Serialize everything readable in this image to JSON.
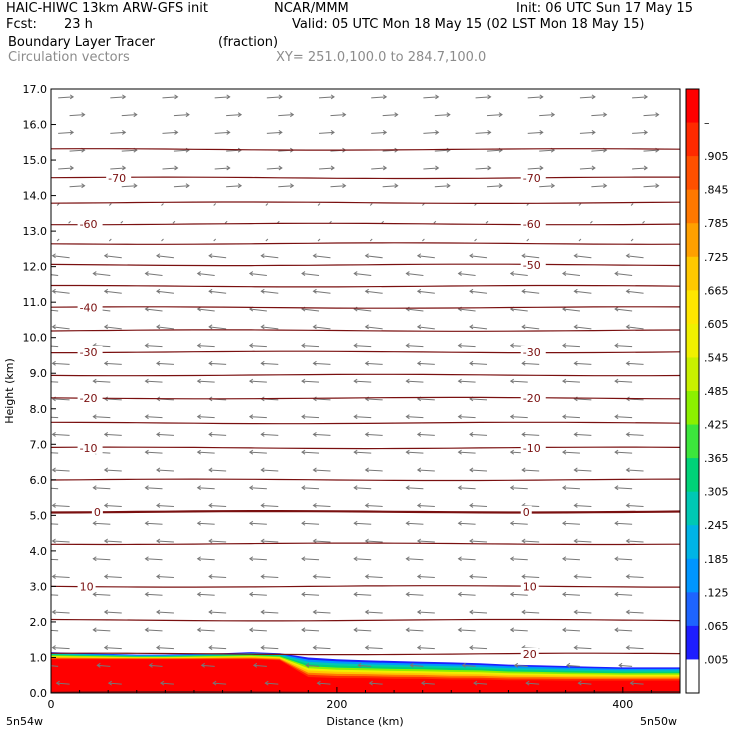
{
  "header": {
    "line1_left": "HAIC-HIWC 13km ARW-GFS init",
    "line1_mid": "NCAR/MMM",
    "line1_right": "Init: 06 UTC Sun 17 May 15",
    "fcst_label": "Fcst:",
    "fcst_value": "23 h",
    "valid": "Valid: 05 UTC Mon 18 May 15 (02 LST Mon 18 May 15)",
    "field_name": "Boundary Layer Tracer",
    "field_units": "(fraction)",
    "vectors_label": "Circulation vectors",
    "xy_label": "XY= 251.0,100.0 to 284.7,100.0"
  },
  "colors": {
    "contour": "#7a1010",
    "vector": "#777777",
    "gray_text": "#8c8c8c"
  },
  "chart_data": {
    "type": "cross-section",
    "xlabel": "Distance (km)",
    "ylabel": "Height (km)",
    "xlim": [
      0,
      440
    ],
    "ylim": [
      0,
      17
    ],
    "x_ticks": [
      0,
      200,
      400
    ],
    "y_ticks": [
      "0.0",
      "1.0",
      "2.0",
      "3.0",
      "4.0",
      "5.0",
      "6.0",
      "7.0",
      "8.0",
      "9.0",
      "10.0",
      "11.0",
      "12.0",
      "13.0",
      "14.0",
      "15.0",
      "16.0",
      "17.0"
    ],
    "left_end_label": "5n54w",
    "right_end_label": "5n50w",
    "temperature_contours": [
      {
        "height": 0.02,
        "label": ""
      },
      {
        "height": 1.1,
        "label": "20",
        "label_x": [
          330
        ]
      },
      {
        "height": 2.05,
        "label": ""
      },
      {
        "height": 3.0,
        "label": "10",
        "label_x": [
          20,
          330
        ]
      },
      {
        "height": 4.2,
        "label": ""
      },
      {
        "height": 5.1,
        "label": "0",
        "label_x": [
          30,
          330
        ]
      },
      {
        "height": 6.0,
        "label": ""
      },
      {
        "height": 6.9,
        "label": "-10",
        "label_x": [
          20,
          330
        ]
      },
      {
        "height": 7.6,
        "label": ""
      },
      {
        "height": 8.3,
        "label": "-20",
        "label_x": [
          20,
          330
        ]
      },
      {
        "height": 8.95,
        "label": ""
      },
      {
        "height": 9.6,
        "label": "-30",
        "label_x": [
          20,
          330
        ]
      },
      {
        "height": 10.2,
        "label": ""
      },
      {
        "height": 10.85,
        "label": "-40",
        "label_x": [
          20
        ]
      },
      {
        "height": 11.45,
        "label": ""
      },
      {
        "height": 12.05,
        "label": "-50",
        "label_x": [
          330
        ]
      },
      {
        "height": 12.65,
        "label": ""
      },
      {
        "height": 13.2,
        "label": "-60",
        "label_x": [
          20,
          330
        ]
      },
      {
        "height": 13.8,
        "label": ""
      },
      {
        "height": 14.5,
        "label": "-70",
        "label_x": [
          40,
          330
        ]
      },
      {
        "height": 15.3,
        "label": ""
      }
    ],
    "tracer_layer": {
      "x": [
        0,
        20,
        40,
        60,
        80,
        100,
        120,
        140,
        160,
        180,
        200,
        220,
        240,
        260,
        280,
        300,
        320,
        340,
        360,
        380,
        400,
        420,
        440
      ],
      "top_height": [
        1.15,
        1.12,
        1.1,
        1.08,
        1.08,
        1.1,
        1.12,
        1.15,
        1.12,
        1.0,
        0.95,
        0.92,
        0.9,
        0.88,
        0.86,
        0.84,
        0.8,
        0.78,
        0.76,
        0.74,
        0.72,
        0.72,
        0.72
      ],
      "core_height": [
        0.95,
        0.95,
        0.95,
        0.95,
        0.95,
        0.95,
        0.95,
        0.95,
        0.92,
        0.45,
        0.42,
        0.42,
        0.4,
        0.4,
        0.38,
        0.38,
        0.36,
        0.36,
        0.35,
        0.35,
        0.35,
        0.35,
        0.35
      ]
    },
    "colorbar": {
      "labels": [
        "–",
        ".905",
        ".845",
        ".785",
        ".725",
        ".665",
        ".605",
        ".545",
        ".485",
        ".425",
        ".365",
        ".305",
        ".245",
        ".185",
        ".125",
        ".065",
        ".005"
      ],
      "colors": [
        "#ff0000",
        "#ff2a00",
        "#ff5000",
        "#ff7800",
        "#ffa000",
        "#ffc800",
        "#ffe600",
        "#f0f000",
        "#c8f000",
        "#8cf000",
        "#3ce63c",
        "#00d278",
        "#00c8b4",
        "#00b4e6",
        "#0096ff",
        "#1e64ff",
        "#1e1eff",
        "#ffffff"
      ]
    }
  }
}
